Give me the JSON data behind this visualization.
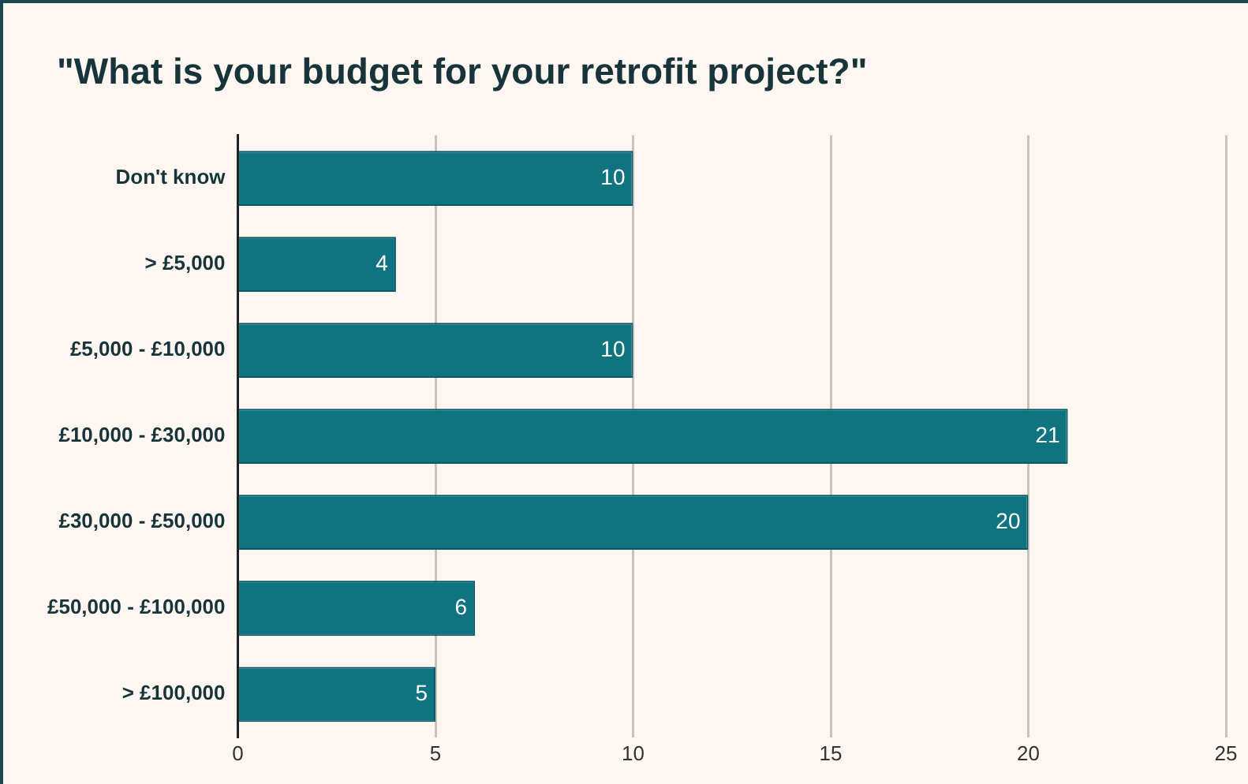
{
  "chart_data": {
    "type": "bar",
    "orientation": "horizontal",
    "title": "\"What is your budget for your retrofit project?\"",
    "categories": [
      "Don't know",
      "> £5,000",
      "£5,000 - £10,000",
      "£10,000 - £30,000",
      "£30,000 - £50,000",
      "£50,000 - £100,000",
      "> £100,000"
    ],
    "values": [
      10,
      4,
      10,
      21,
      20,
      6,
      5
    ],
    "color": "#0f7480",
    "xlim": [
      0,
      25
    ],
    "xticks": [
      0,
      5,
      10,
      15,
      20,
      25
    ],
    "grid": "x",
    "legend": false,
    "data_labels": true
  }
}
